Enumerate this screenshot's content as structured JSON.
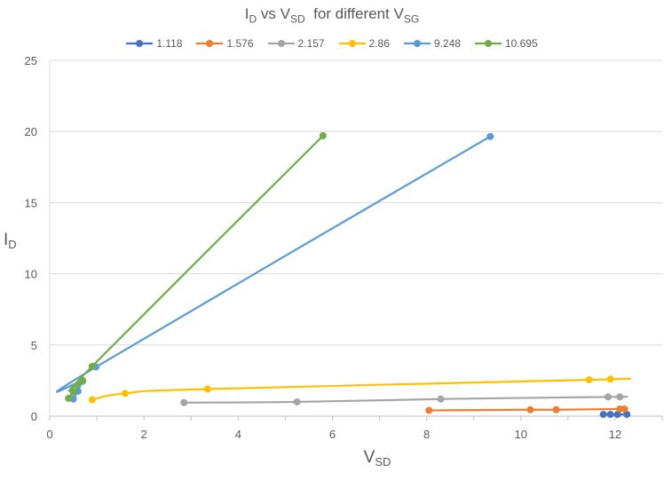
{
  "chart_data": {
    "type": "line",
    "title": {
      "main_1": "I",
      "sub_1": "D",
      "main_2": " vs V",
      "sub_2": "SD",
      "main_3": "  for different V",
      "sub_3": "SG"
    },
    "xlabel": {
      "main": "V",
      "sub": "SD"
    },
    "ylabel": {
      "main": "I",
      "sub": "D"
    },
    "xlim": [
      0,
      13
    ],
    "ylim": [
      0,
      25
    ],
    "xticks": [
      0,
      2,
      4,
      6,
      8,
      10,
      12
    ],
    "yticks": [
      0,
      5,
      10,
      15,
      20,
      25
    ],
    "grid": "horizontal",
    "legend_position": "top",
    "series": [
      {
        "name": "1.118",
        "color": "#4472C4",
        "points": [
          [
            11.75,
            0.12
          ],
          [
            11.9,
            0.12
          ],
          [
            12.05,
            0.12
          ],
          [
            12.25,
            0.12
          ]
        ]
      },
      {
        "name": "1.576",
        "color": "#ED7D31",
        "points": [
          [
            8.05,
            0.4
          ],
          [
            10.2,
            0.45
          ],
          [
            10.75,
            0.45
          ],
          [
            12.1,
            0.5
          ],
          [
            12.2,
            0.5
          ]
        ]
      },
      {
        "name": "2.157",
        "color": "#A5A5A5",
        "points": [
          [
            2.85,
            0.95
          ],
          [
            5.25,
            1.0
          ],
          [
            8.3,
            1.2
          ],
          [
            11.85,
            1.35
          ],
          [
            12.1,
            1.35
          ]
        ]
      },
      {
        "name": "2.86",
        "color": "#FFC000",
        "points": [
          [
            0.9,
            1.15
          ],
          [
            1.6,
            1.6
          ],
          [
            3.35,
            1.9
          ],
          [
            11.45,
            2.55
          ],
          [
            11.9,
            2.6
          ]
        ]
      },
      {
        "name": "9.248",
        "color": "#5B9BD5",
        "points": [
          [
            0.5,
            1.2
          ],
          [
            0.6,
            1.75
          ],
          [
            0.7,
            2.45
          ],
          [
            0.98,
            3.45
          ],
          [
            9.35,
            19.65
          ]
        ]
      },
      {
        "name": "10.695",
        "color": "#70AD47",
        "points": [
          [
            0.4,
            1.25
          ],
          [
            0.5,
            1.7
          ],
          [
            0.7,
            2.5
          ],
          [
            0.9,
            3.5
          ],
          [
            5.8,
            19.7
          ]
        ]
      }
    ]
  }
}
